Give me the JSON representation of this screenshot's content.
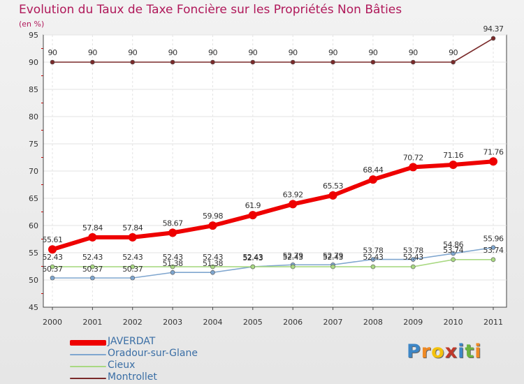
{
  "chart_data": {
    "type": "line",
    "title": "Evolution du Taux de Taxe Foncière sur les Propriétés Non Bâties",
    "ylabel": "(en %)",
    "xlabel": "",
    "ylim": [
      45,
      95
    ],
    "yticks": [
      45,
      50,
      55,
      60,
      65,
      70,
      75,
      80,
      85,
      90,
      95
    ],
    "x": [
      "2000",
      "2001",
      "2002",
      "2003",
      "2004",
      "2005",
      "2006",
      "2007",
      "2008",
      "2009",
      "2010",
      "2011"
    ],
    "grid": true,
    "series": [
      {
        "name": "JAVERDAT",
        "color": "#ee0000",
        "values": [
          55.61,
          57.84,
          57.84,
          58.67,
          59.98,
          61.9,
          63.92,
          65.53,
          68.44,
          70.72,
          71.16,
          71.76
        ],
        "labels": [
          "55.61",
          "57.84",
          "57.84",
          "58.67",
          "59.98",
          "61.9",
          "63.92",
          "65.53",
          "68.44",
          "70.72",
          "71.16",
          "71.76"
        ]
      },
      {
        "name": "Oradour-sur-Glane",
        "color": "#7fa6cf",
        "values": [
          50.37,
          50.37,
          50.37,
          51.38,
          51.38,
          52.43,
          52.79,
          52.79,
          53.78,
          53.78,
          54.86,
          55.96
        ],
        "labels": [
          "50.37",
          "50.37",
          "50.37",
          "51.38",
          "51.38",
          "52.43",
          "52.79",
          "52.79",
          "53.78",
          "53.78",
          "54.86",
          "55.96"
        ]
      },
      {
        "name": "Cieux",
        "color": "#a9d982",
        "values": [
          52.43,
          52.43,
          52.43,
          52.43,
          52.43,
          52.43,
          52.43,
          52.43,
          52.43,
          52.43,
          53.74,
          53.74
        ],
        "labels": [
          "52.43",
          "52.43",
          "52.43",
          "52.43",
          "52.43",
          "52.43",
          "52.43",
          "52.43",
          "52.43",
          "52.43",
          "53.74",
          "53.74"
        ]
      },
      {
        "name": "Montrollet",
        "color": "#7a2a2a",
        "values": [
          90,
          90,
          90,
          90,
          90,
          90,
          90,
          90,
          90,
          90,
          90,
          94.37
        ],
        "labels": [
          "90",
          "90",
          "90",
          "90",
          "90",
          "90",
          "90",
          "90",
          "90",
          "90",
          "90",
          "94.37"
        ]
      }
    ]
  },
  "brand": {
    "letters": [
      "P",
      "r",
      "o",
      "x",
      "i",
      "t",
      "i"
    ],
    "colors": [
      "#3d86c6",
      "#f08a24",
      "#f4c20d",
      "#c0392b",
      "#3d86c6",
      "#6cb33f",
      "#f08a24"
    ]
  }
}
